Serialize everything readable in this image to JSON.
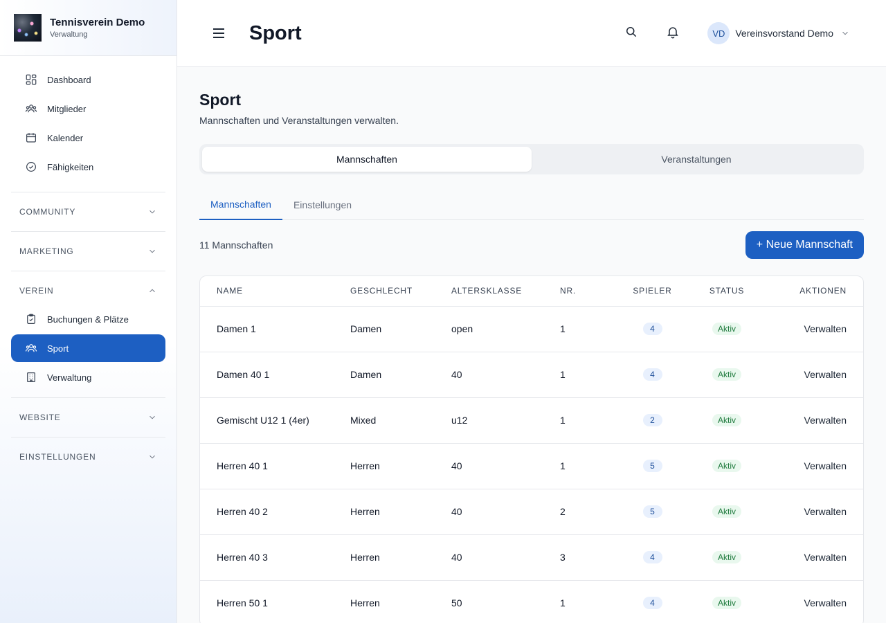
{
  "brand": {
    "title": "Tennisverein Demo",
    "subtitle": "Verwaltung"
  },
  "sidebar": {
    "items": [
      {
        "label": "Dashboard",
        "icon": "dashboard-icon"
      },
      {
        "label": "Mitglieder",
        "icon": "users-icon"
      },
      {
        "label": "Kalender",
        "icon": "calendar-icon"
      },
      {
        "label": "Fähigkeiten",
        "icon": "check-circle-icon"
      }
    ],
    "sections": [
      {
        "label": "COMMUNITY",
        "expanded": false
      },
      {
        "label": "MARKETING",
        "expanded": false
      },
      {
        "label": "VEREIN",
        "expanded": true
      },
      {
        "label": "WEBSITE",
        "expanded": false
      },
      {
        "label": "EINSTELLUNGEN",
        "expanded": false
      }
    ],
    "verein_items": [
      {
        "label": "Buchungen & Plätze",
        "icon": "clipboard-check-icon"
      },
      {
        "label": "Sport",
        "icon": "users-icon",
        "active": true
      },
      {
        "label": "Verwaltung",
        "icon": "building-icon"
      }
    ]
  },
  "header": {
    "title": "Sport",
    "user": {
      "initials": "VD",
      "name": "Vereinsvorstand Demo"
    }
  },
  "main": {
    "title": "Sport",
    "subtitle": "Mannschaften und Veranstaltungen verwalten.",
    "segments": [
      "Mannschaften",
      "Veranstaltungen"
    ],
    "tabs": [
      "Mannschaften",
      "Einstellungen"
    ],
    "count_label": "11 Mannschaften",
    "new_button": "+ Neue Mannschaft",
    "table": {
      "columns": [
        "NAME",
        "GESCHLECHT",
        "ALTERSKLASSE",
        "NR.",
        "SPIELER",
        "STATUS",
        "AKTIONEN"
      ],
      "rows": [
        {
          "name": "Damen 1",
          "gender": "Damen",
          "age": "open",
          "nr": "1",
          "players": "4",
          "status": "Aktiv",
          "action": "Verwalten"
        },
        {
          "name": "Damen 40 1",
          "gender": "Damen",
          "age": "40",
          "nr": "1",
          "players": "4",
          "status": "Aktiv",
          "action": "Verwalten"
        },
        {
          "name": "Gemischt U12 1 (4er)",
          "gender": "Mixed",
          "age": "u12",
          "nr": "1",
          "players": "2",
          "status": "Aktiv",
          "action": "Verwalten"
        },
        {
          "name": "Herren 40 1",
          "gender": "Herren",
          "age": "40",
          "nr": "1",
          "players": "5",
          "status": "Aktiv",
          "action": "Verwalten"
        },
        {
          "name": "Herren 40 2",
          "gender": "Herren",
          "age": "40",
          "nr": "2",
          "players": "5",
          "status": "Aktiv",
          "action": "Verwalten"
        },
        {
          "name": "Herren 40 3",
          "gender": "Herren",
          "age": "40",
          "nr": "3",
          "players": "4",
          "status": "Aktiv",
          "action": "Verwalten"
        },
        {
          "name": "Herren 50 1",
          "gender": "Herren",
          "age": "50",
          "nr": "1",
          "players": "4",
          "status": "Aktiv",
          "action": "Verwalten"
        }
      ]
    }
  },
  "colors": {
    "accent": "#1d5fc2",
    "badge_blue_bg": "#e8f0fd",
    "badge_green_bg": "#e9f8ee",
    "badge_green_text": "#1f7a3d"
  }
}
